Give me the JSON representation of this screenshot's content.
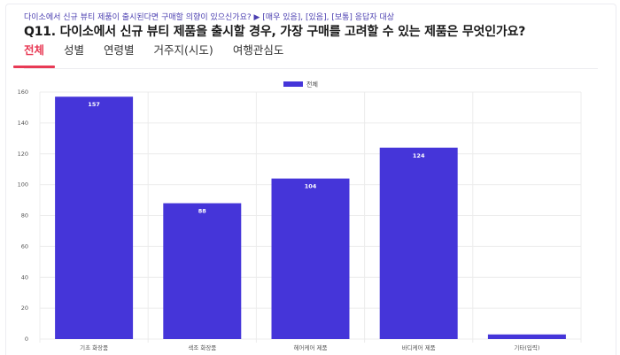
{
  "header": {
    "subtitle": "다이소에서 신규 뷰티 제품이 출시된다면 구매할 의향이 있으신가요? ▶ [매우 있음], [있음], [보통] 응답자 대상",
    "question": "Q11. 다이소에서 신규 뷰티 제품을 출시할 경우,  가장 구매를 고려할 수 있는 제품은 무엇인가요?"
  },
  "tabs": [
    {
      "label": "전체",
      "active": true
    },
    {
      "label": "성별",
      "active": false
    },
    {
      "label": "연령별",
      "active": false
    },
    {
      "label": "거주지(시도)",
      "active": false
    },
    {
      "label": "여행관심도",
      "active": false
    }
  ],
  "colors": {
    "accent": "#e83a55",
    "bar": "#4535d9"
  },
  "chart_data": {
    "type": "bar",
    "categories": [
      "기초 화장품",
      "색조 화장품",
      "헤어케어 제품",
      "바디케어 제품",
      "기타(입력)"
    ],
    "series": [
      {
        "name": "전체",
        "values": [
          157,
          88,
          104,
          124,
          3
        ],
        "color": "#4535d9"
      }
    ],
    "data_labels": [
      "157",
      "88",
      "104",
      "124",
      ""
    ],
    "ylim": [
      0,
      160
    ],
    "yticks": [
      "0",
      "20",
      "40",
      "60",
      "80",
      "100",
      "120",
      "140",
      "160"
    ],
    "grid": true,
    "legend_position": "top-center",
    "xlabel": "",
    "ylabel": ""
  }
}
